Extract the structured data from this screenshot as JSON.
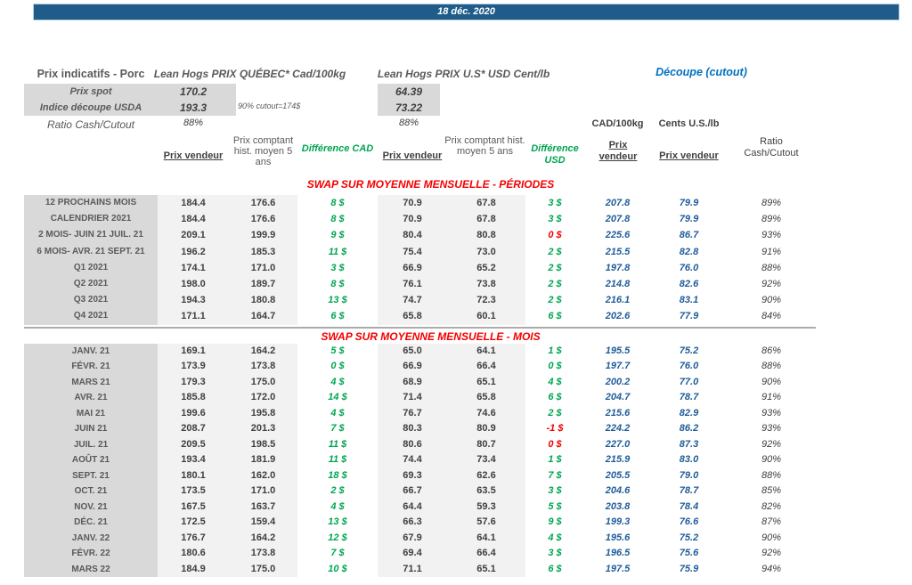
{
  "date_banner": "18 déc. 2020",
  "colors": {
    "banner_bg": "#1F5C8A",
    "green": "#00A651",
    "red": "#F40000",
    "blue_value": "#1F5C99",
    "blue_title": "#0070C0",
    "label_bg": "#D9D9D9",
    "band_bg": "#F2F2F2"
  },
  "top": {
    "title": "Prix indicatifs - Porc",
    "quebec_title": "Lean Hogs PRIX QUÉBEC* Cad/100kg",
    "us_title": "Lean Hogs PRIX U.S* USD Cent/lb",
    "cutout_title": "Découpe (cutout)",
    "spot_label": "Prix spot",
    "spot_cad": "170.2",
    "spot_usd": "64.39",
    "indice_label": "Indice découpe USDA",
    "indice_cad": "193.3",
    "indice_usd": "73.22",
    "cutout_note": "90% cutout=174$",
    "ratio_label": "Ratio Cash/Cutout",
    "ratio_cad": "88%",
    "ratio_usd": "88%"
  },
  "column_headers": {
    "prix_vendeur": "Prix vendeur",
    "prix_comptant": "Prix comptant hist. moyen 5 ans",
    "diff_cad": "Différence CAD",
    "diff_usd": "Différence USD",
    "unit_cad": "CAD/100kg",
    "unit_cents": "Cents U.S./lb",
    "prix_vendeur_cut_cad": "Prix vendeur",
    "prix_vendeur_cut_cents": "Prix vendeur",
    "ratio": "Ratio Cash/Cutout"
  },
  "sections": [
    {
      "header": "SWAP SUR MOYENNE MENSUELLE - PÉRIODES",
      "rows": [
        [
          "12 PROCHAINS MOIS",
          "184.4",
          "176.6",
          "8 $",
          "green",
          "70.9",
          "67.8",
          "3 $",
          "green",
          "207.8",
          "79.9",
          "89%"
        ],
        [
          "CALENDRIER 2021",
          "184.4",
          "176.6",
          "8 $",
          "green",
          "70.9",
          "67.8",
          "3 $",
          "green",
          "207.8",
          "79.9",
          "89%"
        ],
        [
          "2 MOIS- JUIN 21 JUIL. 21",
          "209.1",
          "199.9",
          "9 $",
          "green",
          "80.4",
          "80.8",
          "0 $",
          "red",
          "225.6",
          "86.7",
          "93%"
        ],
        [
          "6 MOIS- AVR. 21 SEPT. 21",
          "196.2",
          "185.3",
          "11 $",
          "green",
          "75.4",
          "73.0",
          "2 $",
          "green",
          "215.5",
          "82.8",
          "91%"
        ],
        [
          "Q1 2021",
          "174.1",
          "171.0",
          "3 $",
          "green",
          "66.9",
          "65.2",
          "2 $",
          "green",
          "197.8",
          "76.0",
          "88%"
        ],
        [
          "Q2 2021",
          "198.0",
          "189.7",
          "8 $",
          "green",
          "76.1",
          "73.8",
          "2 $",
          "green",
          "214.8",
          "82.6",
          "92%"
        ],
        [
          "Q3 2021",
          "194.3",
          "180.8",
          "13 $",
          "green",
          "74.7",
          "72.3",
          "2 $",
          "green",
          "216.1",
          "83.1",
          "90%"
        ],
        [
          "Q4 2021",
          "171.1",
          "164.7",
          "6 $",
          "green",
          "65.8",
          "60.1",
          "6 $",
          "green",
          "202.6",
          "77.9",
          "84%"
        ]
      ]
    },
    {
      "header": "SWAP SUR MOYENNE MENSUELLE - MOIS",
      "rows": [
        [
          "JANV. 21",
          "169.1",
          "164.2",
          "5 $",
          "green",
          "65.0",
          "64.1",
          "1 $",
          "green",
          "195.5",
          "75.2",
          "86%"
        ],
        [
          "FÉVR. 21",
          "173.9",
          "173.8",
          "0 $",
          "green",
          "66.9",
          "66.4",
          "0 $",
          "green",
          "197.7",
          "76.0",
          "88%"
        ],
        [
          "MARS 21",
          "179.3",
          "175.0",
          "4 $",
          "green",
          "68.9",
          "65.1",
          "4 $",
          "green",
          "200.2",
          "77.0",
          "90%"
        ],
        [
          "AVR. 21",
          "185.8",
          "172.0",
          "14 $",
          "green",
          "71.4",
          "65.8",
          "6 $",
          "green",
          "204.7",
          "78.7",
          "91%"
        ],
        [
          "MAI 21",
          "199.6",
          "195.8",
          "4 $",
          "green",
          "76.7",
          "74.6",
          "2 $",
          "green",
          "215.6",
          "82.9",
          "93%"
        ],
        [
          "JUIN 21",
          "208.7",
          "201.3",
          "7 $",
          "green",
          "80.3",
          "80.9",
          "-1 $",
          "red",
          "224.2",
          "86.2",
          "93%"
        ],
        [
          "JUIL. 21",
          "209.5",
          "198.5",
          "11 $",
          "green",
          "80.6",
          "80.7",
          "0 $",
          "red",
          "227.0",
          "87.3",
          "92%"
        ],
        [
          "AOÛT 21",
          "193.4",
          "181.9",
          "11 $",
          "green",
          "74.4",
          "73.4",
          "1 $",
          "green",
          "215.9",
          "83.0",
          "90%"
        ],
        [
          "SEPT. 21",
          "180.1",
          "162.0",
          "18 $",
          "green",
          "69.3",
          "62.6",
          "7 $",
          "green",
          "205.5",
          "79.0",
          "88%"
        ],
        [
          "OCT. 21",
          "173.5",
          "171.0",
          "2 $",
          "green",
          "66.7",
          "63.5",
          "3 $",
          "green",
          "204.6",
          "78.7",
          "85%"
        ],
        [
          "NOV. 21",
          "167.5",
          "163.7",
          "4 $",
          "green",
          "64.4",
          "59.3",
          "5 $",
          "green",
          "203.8",
          "78.4",
          "82%"
        ],
        [
          "DÉC. 21",
          "172.5",
          "159.4",
          "13 $",
          "green",
          "66.3",
          "57.6",
          "9 $",
          "green",
          "199.3",
          "76.6",
          "87%"
        ],
        [
          "JANV. 22",
          "176.7",
          "164.2",
          "12 $",
          "green",
          "67.9",
          "64.1",
          "4 $",
          "green",
          "195.6",
          "75.2",
          "90%"
        ],
        [
          "FÉVR. 22",
          "180.6",
          "173.8",
          "7 $",
          "green",
          "69.4",
          "66.4",
          "3 $",
          "green",
          "196.5",
          "75.6",
          "92%"
        ],
        [
          "MARS 22",
          "184.9",
          "175.0",
          "10 $",
          "green",
          "71.1",
          "65.1",
          "6 $",
          "green",
          "197.5",
          "75.9",
          "94%"
        ]
      ]
    }
  ]
}
